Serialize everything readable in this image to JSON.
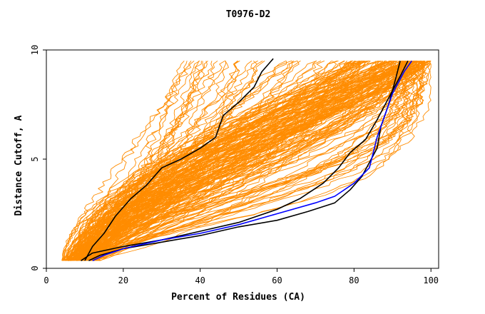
{
  "chart_data": {
    "type": "line",
    "title": "T0976-D2",
    "xlabel": "Percent of Residues (CA)",
    "ylabel": "Distance Cutoff, A",
    "xlim": [
      0,
      102
    ],
    "ylim": [
      0,
      10
    ],
    "x_ticks": [
      0,
      20,
      40,
      60,
      80,
      100
    ],
    "y_ticks": [
      0,
      5,
      10
    ],
    "grid": false,
    "legend": "none",
    "colors": {
      "bundle": "#ff8c00",
      "highlight_black": "#000000",
      "highlight_blue": "#0000ff"
    },
    "series": [
      {
        "values": [
          [
            11,
            0.35
          ],
          [
            14,
            0.6
          ],
          [
            20,
            0.9
          ],
          [
            30,
            1.2
          ],
          [
            40,
            1.5
          ],
          [
            50,
            1.9
          ],
          [
            60,
            2.2
          ],
          [
            68,
            2.6
          ],
          [
            75,
            3.0
          ],
          [
            79,
            3.6
          ],
          [
            82,
            4.2
          ],
          [
            86,
            5.5
          ],
          [
            87,
            6.5
          ],
          [
            89,
            7.5
          ],
          [
            91,
            8.8
          ],
          [
            92,
            9.5
          ]
        ],
        "color": "#000000"
      },
      {
        "values": [
          [
            9,
            0.35
          ],
          [
            12,
            0.7
          ],
          [
            20,
            1.0
          ],
          [
            30,
            1.3
          ],
          [
            40,
            1.7
          ],
          [
            50,
            2.1
          ],
          [
            60,
            2.7
          ],
          [
            66,
            3.2
          ],
          [
            72,
            3.9
          ],
          [
            76,
            4.6
          ],
          [
            79,
            5.3
          ],
          [
            83,
            5.9
          ],
          [
            86,
            6.8
          ],
          [
            89,
            7.8
          ],
          [
            92,
            8.8
          ],
          [
            94,
            9.5
          ]
        ],
        "color": "#000000"
      },
      {
        "values": [
          [
            12,
            0.35
          ],
          [
            15,
            0.6
          ],
          [
            20,
            0.9
          ],
          [
            30,
            1.3
          ],
          [
            40,
            1.6
          ],
          [
            50,
            2.0
          ],
          [
            60,
            2.5
          ],
          [
            70,
            3.0
          ],
          [
            75,
            3.3
          ],
          [
            80,
            3.9
          ],
          [
            84,
            4.6
          ],
          [
            86,
            6.0
          ],
          [
            88,
            7.0
          ],
          [
            90,
            8.0
          ],
          [
            93,
            9.0
          ],
          [
            95,
            9.5
          ]
        ],
        "color": "#0000ff"
      },
      {
        "values": [
          [
            10,
            0.35
          ],
          [
            12,
            1.0
          ],
          [
            15,
            1.6
          ],
          [
            18,
            2.4
          ],
          [
            22,
            3.2
          ],
          [
            26,
            3.8
          ],
          [
            30,
            4.6
          ],
          [
            35,
            5.0
          ],
          [
            40,
            5.5
          ],
          [
            44,
            6.0
          ],
          [
            46,
            7.0
          ],
          [
            50,
            7.6
          ],
          [
            54,
            8.3
          ],
          [
            56,
            9.0
          ],
          [
            59,
            9.6
          ]
        ],
        "color": "#000000"
      }
    ]
  }
}
